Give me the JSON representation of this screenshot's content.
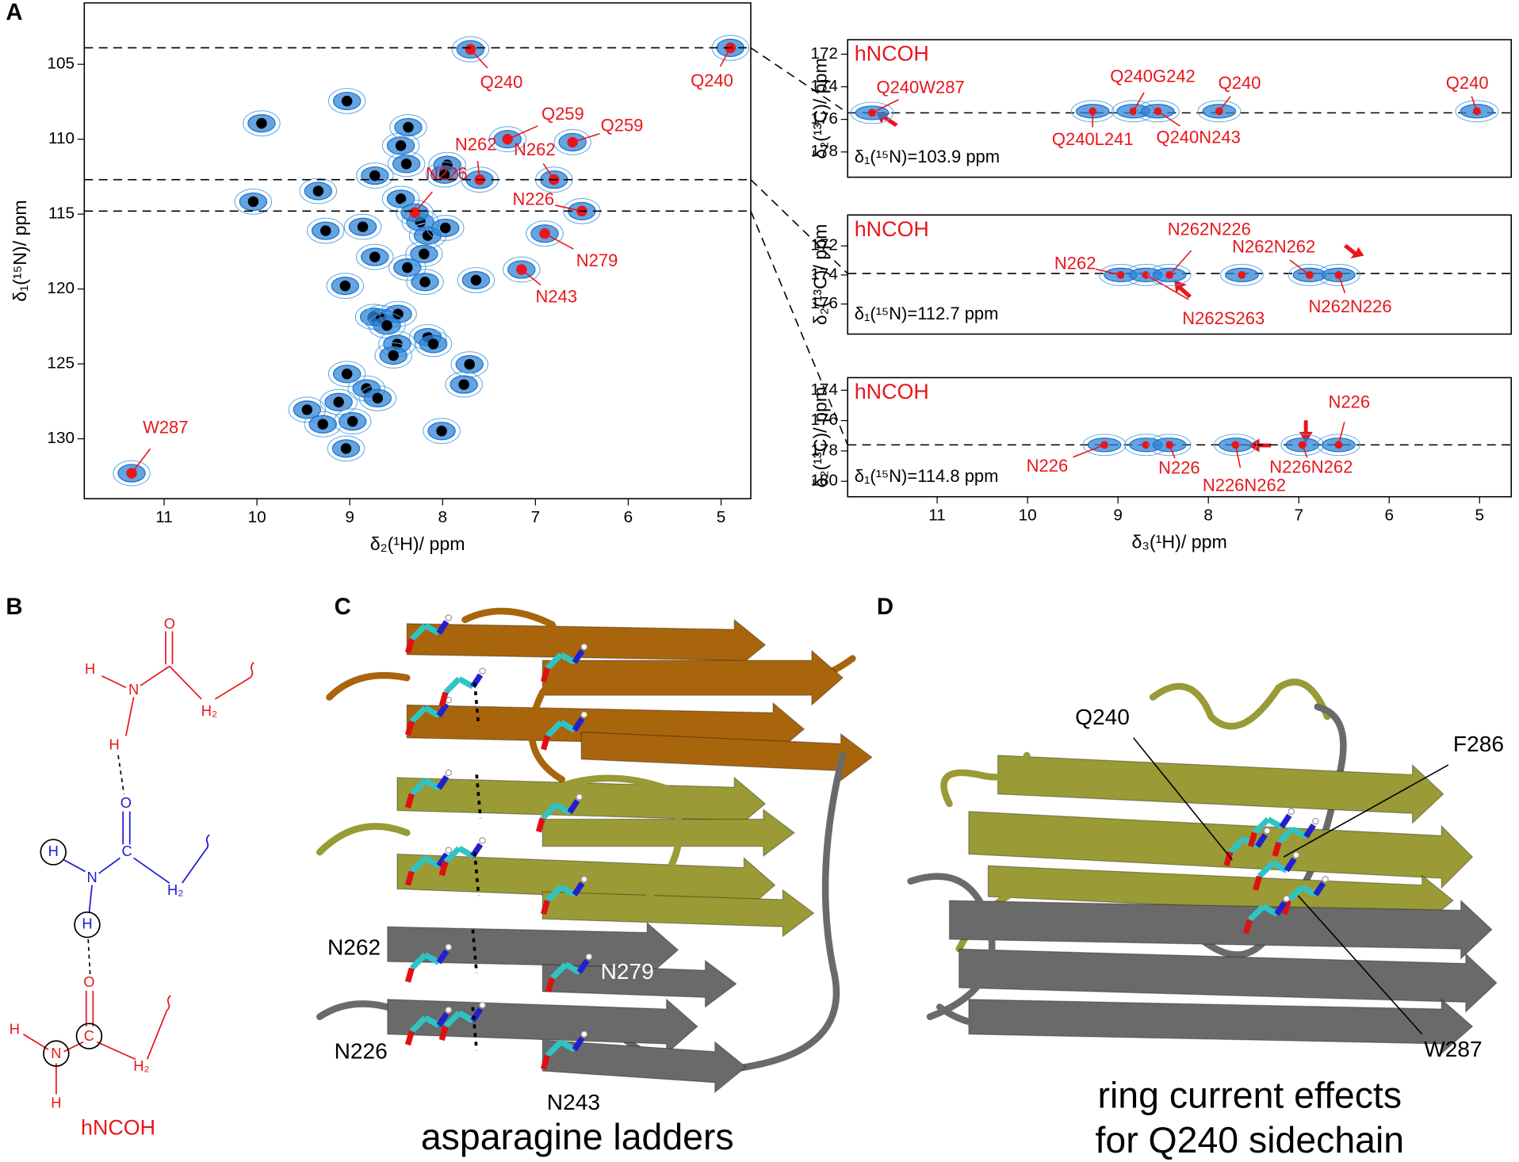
{
  "panel_labels": [
    "A",
    "B",
    "C",
    "D"
  ],
  "chart_data": [
    {
      "type": "scatter",
      "xlabel": "δ₂(¹H)/ ppm",
      "ylabel": "δ₁(¹⁵N)/ ppm",
      "xlim": [
        11.86,
        4.68
      ],
      "ylim": [
        134.0,
        100.9
      ],
      "xticks": [
        11,
        10,
        9,
        8,
        7,
        6,
        5
      ],
      "yticks": [
        105,
        110,
        115,
        120,
        125,
        130
      ],
      "series": [
        {
          "color": "#000000",
          "x": [
            9.95,
            9.03,
            8.45,
            8.37,
            8.39,
            8.73,
            7.95,
            7.98,
            8.24,
            9.34,
            8.45,
            8.86,
            9.26,
            8.16,
            7.97,
            8.2,
            8.73,
            8.38,
            7.64,
            8.19,
            9.05,
            8.74,
            8.66,
            8.48,
            8.6,
            8.16,
            8.49,
            8.1,
            8.53,
            7.71,
            9.03,
            8.82,
            8.7,
            9.12,
            7.77,
            9.46,
            8.97,
            9.29,
            8.01,
            9.04,
            10.04
          ],
          "values": [
            108.94,
            107.45,
            110.43,
            109.2,
            111.65,
            112.43,
            111.72,
            112.36,
            115.53,
            113.46,
            113.98,
            115.85,
            116.11,
            116.43,
            115.92,
            117.66,
            117.86,
            118.57,
            119.41,
            119.53,
            119.79,
            121.86,
            121.93,
            121.67,
            122.44,
            123.22,
            123.67,
            123.67,
            124.44,
            125.03,
            125.67,
            126.64,
            127.29,
            127.55,
            126.38,
            128.06,
            128.84,
            129.03,
            129.48,
            130.65,
            114.17
          ]
        },
        {
          "color": "#e8161b",
          "x": [
            7.7,
            4.9,
            7.3,
            6.6,
            7.6,
            6.8,
            8.3,
            6.5,
            6.9,
            7.15,
            11.35
          ],
          "values": [
            104.0,
            103.9,
            110.0,
            110.2,
            112.7,
            112.7,
            114.9,
            114.8,
            116.3,
            118.7,
            132.3
          ],
          "labels": [
            "Q240",
            "Q240",
            "Q259",
            "Q259",
            "N262",
            "N262",
            "N226",
            "N226",
            "N279",
            "N243",
            "W287"
          ]
        }
      ]
    },
    {
      "type": "scatter",
      "title": "hNCOH",
      "ylabel": "δ₂(¹³C)/ ppm",
      "xlim": [
        11.99,
        4.65
      ],
      "ylim": [
        179.55,
        171.11
      ],
      "yticks": [
        172,
        174,
        176,
        178
      ],
      "slice": {
        "value": 103.9,
        "label": "δ₁(¹⁵N)=103.9 ppm"
      },
      "cursor": 175.6,
      "series": [
        {
          "color": "#e8161b",
          "x": [
            11.72,
            9.28,
            8.83,
            8.56,
            7.88,
            5.03
          ],
          "values": [
            175.6,
            175.5,
            175.5,
            175.5,
            175.5,
            175.5
          ],
          "labels": [
            "Q240W287",
            "Q240L241",
            "Q240G242",
            "Q240N243",
            "Q240",
            "Q240"
          ]
        }
      ]
    },
    {
      "type": "scatter",
      "title": "hNCOH",
      "ylabel": "δ₂(¹³C)/ ppm",
      "xlim": [
        11.99,
        4.65
      ],
      "ylim": [
        178.07,
        169.87
      ],
      "yticks": [
        172,
        174,
        176
      ],
      "slice": {
        "value": 112.7,
        "label": "δ₁(¹⁵N)=112.7 ppm"
      },
      "cursor": 173.9,
      "series": [
        {
          "color": "#e8161b",
          "x": [
            8.97,
            8.69,
            8.43,
            7.63,
            6.88,
            6.56
          ],
          "values": [
            174.0,
            174.0,
            174.0,
            174.0,
            174.0,
            174.0
          ],
          "labels": [
            "N262",
            "N262S263",
            "N262N226",
            null,
            "N262N262",
            "N262N226"
          ]
        }
      ]
    },
    {
      "type": "scatter",
      "title": "hNCOH",
      "ylabel": "δ₂(¹³C)/ ppm",
      "xlabel": "δ₃(¹H)/ ppm",
      "xlim": [
        11.99,
        4.65
      ],
      "ylim": [
        181.02,
        173.17
      ],
      "xticks": [
        11,
        10,
        9,
        8,
        7,
        6,
        5
      ],
      "yticks": [
        174,
        176,
        178,
        180
      ],
      "slice": {
        "value": 114.8,
        "label": "δ₁(¹⁵N)=114.8 ppm"
      },
      "cursor": 177.6,
      "series": [
        {
          "color": "#e8161b",
          "x": [
            9.15,
            8.69,
            8.43,
            7.7,
            6.96,
            6.56
          ],
          "values": [
            177.6,
            177.6,
            177.6,
            177.6,
            177.6,
            177.6
          ],
          "labels": [
            "N226",
            null,
            "N226",
            "N226N262",
            "N226N262",
            "N226"
          ]
        }
      ]
    }
  ],
  "panel_B": {
    "atoms": [
      "O",
      "H",
      "N",
      "H₂",
      "H",
      "O",
      "H",
      "N",
      "C",
      "H₂",
      "H",
      "O",
      "H",
      "N",
      "C",
      "H₂",
      "H"
    ],
    "caption": "hNCOH"
  },
  "panel_C": {
    "labels": [
      "N262",
      "N279",
      "N226",
      "N243"
    ],
    "caption": "asparagine ladders"
  },
  "panel_D": {
    "labels": [
      "Q240",
      "F286",
      "W287"
    ],
    "caption": [
      "ring current effects",
      "for Q240 sidechain"
    ]
  }
}
